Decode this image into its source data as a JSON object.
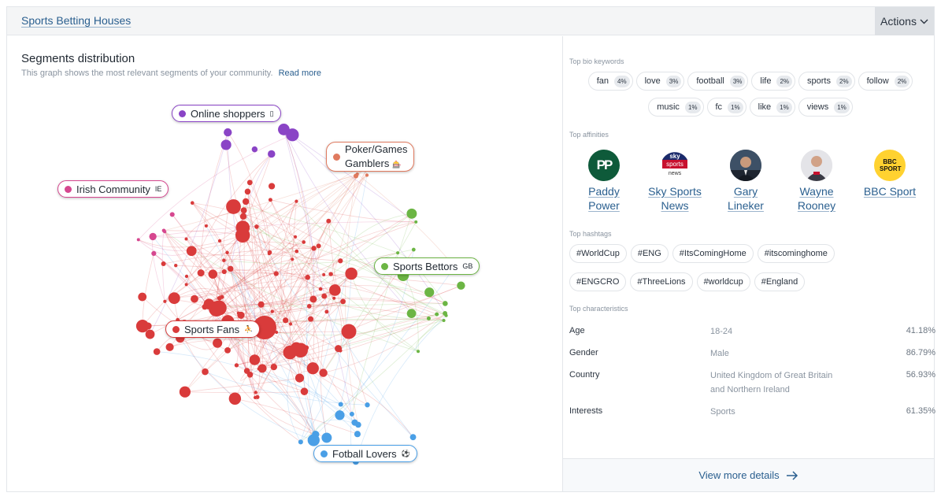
{
  "header": {
    "title": "Sports Betting Houses",
    "actions_label": "Actions"
  },
  "segments": {
    "title": "Segments distribution",
    "subtitle": "This graph shows the most relevant segments of your community.",
    "read_more": "Read more",
    "labels": [
      {
        "name": "Online shoppers",
        "flag": "▯",
        "color": "#8a44c6"
      },
      {
        "name": "Poker/Games",
        "name2": "Gamblers",
        "flag": "🎰",
        "color": "#e07a5f"
      },
      {
        "name": "Irish Community",
        "flag": "IE",
        "color": "#d6478f"
      },
      {
        "name": "Sports Bettors",
        "flag": "GB",
        "color": "#6cb544"
      },
      {
        "name": "Sports Fans",
        "flag": "⛹",
        "color": "#d93b3b"
      },
      {
        "name": "Fotball Lovers",
        "flag": "⚽",
        "color": "#4a9fe6"
      }
    ]
  },
  "bio_keywords": {
    "label": "Top bio keywords",
    "items": [
      {
        "word": "fan",
        "pct": "4%"
      },
      {
        "word": "love",
        "pct": "3%"
      },
      {
        "word": "football",
        "pct": "3%"
      },
      {
        "word": "life",
        "pct": "2%"
      },
      {
        "word": "sports",
        "pct": "2%"
      },
      {
        "word": "follow",
        "pct": "2%"
      },
      {
        "word": "music",
        "pct": "1%"
      },
      {
        "word": "fc",
        "pct": "1%"
      },
      {
        "word": "like",
        "pct": "1%"
      },
      {
        "word": "views",
        "pct": "1%"
      }
    ]
  },
  "affinities": {
    "label": "Top affinities",
    "items": [
      {
        "line1": "Paddy",
        "line2": "Power",
        "logo_text": "PP",
        "color": "#0e5a3a"
      },
      {
        "line1": "Sky Sports",
        "line2": "News",
        "logo_text": "sky sports news",
        "color": "#c8102e"
      },
      {
        "line1": "Gary Lineker",
        "line2": "",
        "logo_text": "",
        "color": "#2d3a4a"
      },
      {
        "line1": "Wayne",
        "line2": "Rooney",
        "logo_text": "",
        "color": "#4a4a52"
      },
      {
        "line1": "BBC Sport",
        "line2": "",
        "logo_text": "BBC SPORT",
        "color": "#ffd230"
      }
    ]
  },
  "hashtags": {
    "label": "Top hashtags",
    "items": [
      "#WorldCup",
      "#ENG",
      "#ItsComingHome",
      "#itscominghome",
      "#ENGCRO",
      "#ThreeLions",
      "#worldcup",
      "#England"
    ]
  },
  "characteristics": {
    "label": "Top characteristics",
    "rows": [
      {
        "key": "Age",
        "value": "18-24",
        "pct": "41.18%"
      },
      {
        "key": "Gender",
        "value": "Male",
        "pct": "86.79%"
      },
      {
        "key": "Country",
        "value": "United Kingdom of Great Britain and Northern Ireland",
        "pct": "56.93%"
      },
      {
        "key": "Interests",
        "value": "Sports",
        "pct": "61.35%"
      }
    ]
  },
  "footer": {
    "view_more": "View more details"
  }
}
